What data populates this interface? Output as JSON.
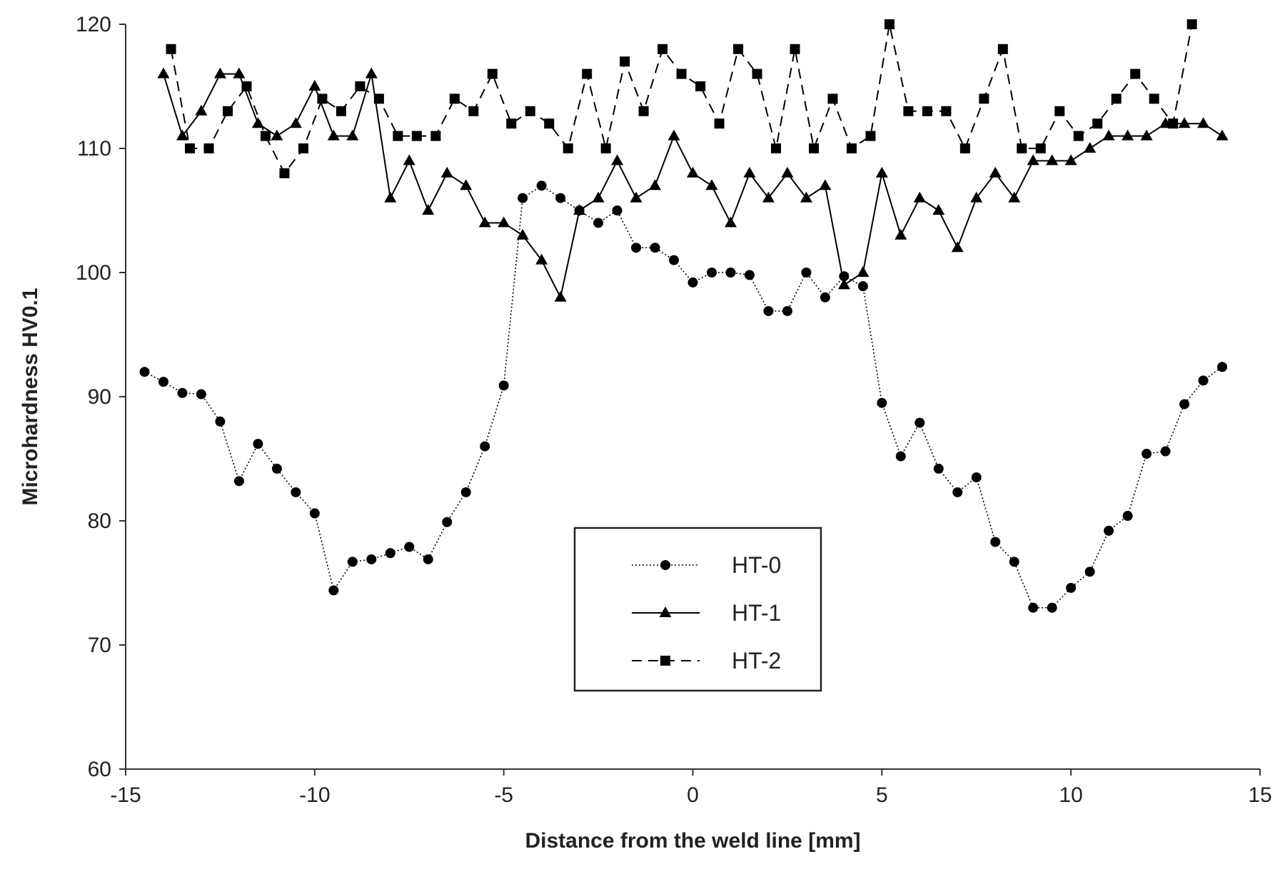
{
  "chart_data": {
    "type": "line",
    "xlabel": "Distance from the weld line [mm]",
    "ylabel": "Microhardness HV0.1",
    "xlim": [
      -15,
      15
    ],
    "ylim": [
      60,
      120
    ],
    "xticks": [
      -15,
      -10,
      -5,
      0,
      5,
      10,
      15
    ],
    "yticks": [
      60,
      70,
      80,
      90,
      100,
      110,
      120
    ],
    "grid": false,
    "legend_position": "center-bottom",
    "series": [
      {
        "name": "HT-0",
        "line_style": "dotted",
        "marker": "circle",
        "color": "#000000",
        "points": [
          [
            -14.5,
            92
          ],
          [
            -14.0,
            91.2
          ],
          [
            -13.5,
            90.3
          ],
          [
            -13.0,
            90.2
          ],
          [
            -12.5,
            88
          ],
          [
            -12.0,
            83.2
          ],
          [
            -11.5,
            86.2
          ],
          [
            -11.0,
            84.2
          ],
          [
            -10.5,
            82.3
          ],
          [
            -10.0,
            80.6
          ],
          [
            -9.5,
            74.4
          ],
          [
            -9.0,
            76.7
          ],
          [
            -8.5,
            76.9
          ],
          [
            -8.0,
            77.4
          ],
          [
            -7.5,
            77.9
          ],
          [
            -7.0,
            76.9
          ],
          [
            -6.5,
            79.9
          ],
          [
            -6.0,
            82.3
          ],
          [
            -5.5,
            86
          ],
          [
            -5.0,
            90.9
          ],
          [
            -4.5,
            106
          ],
          [
            -4.0,
            107
          ],
          [
            -3.5,
            106
          ],
          [
            -3.0,
            105
          ],
          [
            -2.5,
            104
          ],
          [
            -2.0,
            105
          ],
          [
            -1.5,
            102
          ],
          [
            -1.0,
            102
          ],
          [
            -0.5,
            101
          ],
          [
            0.0,
            99.2
          ],
          [
            0.5,
            100
          ],
          [
            1.0,
            100
          ],
          [
            1.5,
            99.8
          ],
          [
            2.0,
            96.9
          ],
          [
            2.5,
            96.9
          ],
          [
            3.0,
            100
          ],
          [
            3.5,
            98
          ],
          [
            4.0,
            99.7
          ],
          [
            4.5,
            98.9
          ],
          [
            5.0,
            89.5
          ],
          [
            5.5,
            85.2
          ],
          [
            6.0,
            87.9
          ],
          [
            6.5,
            84.2
          ],
          [
            7.0,
            82.3
          ],
          [
            7.5,
            83.5
          ],
          [
            8.0,
            78.3
          ],
          [
            8.5,
            76.7
          ],
          [
            9.0,
            73
          ],
          [
            9.5,
            73
          ],
          [
            10.0,
            74.6
          ],
          [
            10.5,
            75.9
          ],
          [
            11.0,
            79.2
          ],
          [
            11.5,
            80.4
          ],
          [
            12.0,
            85.4
          ],
          [
            12.5,
            85.6
          ],
          [
            13.0,
            89.4
          ],
          [
            13.5,
            91.3
          ],
          [
            14.0,
            92.4
          ]
        ]
      },
      {
        "name": "HT-1",
        "line_style": "solid",
        "marker": "triangle",
        "color": "#000000",
        "points": [
          [
            -14.0,
            116
          ],
          [
            -13.5,
            111
          ],
          [
            -13.0,
            113
          ],
          [
            -12.5,
            116
          ],
          [
            -12.0,
            116
          ],
          [
            -11.5,
            112
          ],
          [
            -11.0,
            111
          ],
          [
            -10.5,
            112
          ],
          [
            -10.0,
            115
          ],
          [
            -9.5,
            111
          ],
          [
            -9.0,
            111
          ],
          [
            -8.5,
            116
          ],
          [
            -8.0,
            106
          ],
          [
            -7.5,
            109
          ],
          [
            -7.0,
            105
          ],
          [
            -6.5,
            108
          ],
          [
            -6.0,
            107
          ],
          [
            -5.5,
            104
          ],
          [
            -5.0,
            104
          ],
          [
            -4.5,
            103
          ],
          [
            -4.0,
            101
          ],
          [
            -3.5,
            98
          ],
          [
            -3.0,
            105
          ],
          [
            -2.5,
            106
          ],
          [
            -2.0,
            109
          ],
          [
            -1.5,
            106
          ],
          [
            -1.0,
            107
          ],
          [
            -0.5,
            111
          ],
          [
            0.0,
            108
          ],
          [
            0.5,
            107
          ],
          [
            1.0,
            104
          ],
          [
            1.5,
            108
          ],
          [
            2.0,
            106
          ],
          [
            2.5,
            108
          ],
          [
            3.0,
            106
          ],
          [
            3.5,
            107
          ],
          [
            4.0,
            99
          ],
          [
            4.5,
            100
          ],
          [
            5.0,
            108
          ],
          [
            5.5,
            103
          ],
          [
            6.0,
            106
          ],
          [
            6.5,
            105
          ],
          [
            7.0,
            102
          ],
          [
            7.5,
            106
          ],
          [
            8.0,
            108
          ],
          [
            8.5,
            106
          ],
          [
            9.0,
            109
          ],
          [
            9.5,
            109
          ],
          [
            10.0,
            109
          ],
          [
            10.5,
            110
          ],
          [
            11.0,
            111
          ],
          [
            11.5,
            111
          ],
          [
            12.0,
            111
          ],
          [
            12.5,
            112
          ],
          [
            13.0,
            112
          ],
          [
            13.5,
            112
          ],
          [
            14.0,
            111
          ]
        ]
      },
      {
        "name": "HT-2",
        "line_style": "dashed",
        "marker": "square",
        "color": "#000000",
        "points": [
          [
            -13.8,
            118
          ],
          [
            -13.3,
            110
          ],
          [
            -12.8,
            110
          ],
          [
            -12.3,
            113
          ],
          [
            -11.8,
            115
          ],
          [
            -11.3,
            111
          ],
          [
            -10.8,
            108
          ],
          [
            -10.3,
            110
          ],
          [
            -9.8,
            114
          ],
          [
            -9.3,
            113
          ],
          [
            -8.8,
            115
          ],
          [
            -8.3,
            114
          ],
          [
            -7.8,
            111
          ],
          [
            -7.3,
            111
          ],
          [
            -6.8,
            111
          ],
          [
            -6.3,
            114
          ],
          [
            -5.8,
            113
          ],
          [
            -5.3,
            116
          ],
          [
            -4.8,
            112
          ],
          [
            -4.3,
            113
          ],
          [
            -3.8,
            112
          ],
          [
            -3.3,
            110
          ],
          [
            -2.8,
            116
          ],
          [
            -2.3,
            110
          ],
          [
            -1.8,
            117
          ],
          [
            -1.3,
            113
          ],
          [
            -0.8,
            118
          ],
          [
            -0.3,
            116
          ],
          [
            0.2,
            115
          ],
          [
            0.7,
            112
          ],
          [
            1.2,
            118
          ],
          [
            1.7,
            116
          ],
          [
            2.2,
            110
          ],
          [
            2.7,
            118
          ],
          [
            3.2,
            110
          ],
          [
            3.7,
            114
          ],
          [
            4.2,
            110
          ],
          [
            4.7,
            111
          ],
          [
            5.2,
            120
          ],
          [
            5.7,
            113
          ],
          [
            6.2,
            113
          ],
          [
            6.7,
            113
          ],
          [
            7.2,
            110
          ],
          [
            7.7,
            114
          ],
          [
            8.2,
            118
          ],
          [
            8.7,
            110
          ],
          [
            9.2,
            110
          ],
          [
            9.7,
            113
          ],
          [
            10.2,
            111
          ],
          [
            10.7,
            112
          ],
          [
            11.2,
            114
          ],
          [
            11.7,
            116
          ],
          [
            12.2,
            114
          ],
          [
            12.7,
            112
          ],
          [
            13.2,
            120
          ]
        ]
      }
    ]
  }
}
